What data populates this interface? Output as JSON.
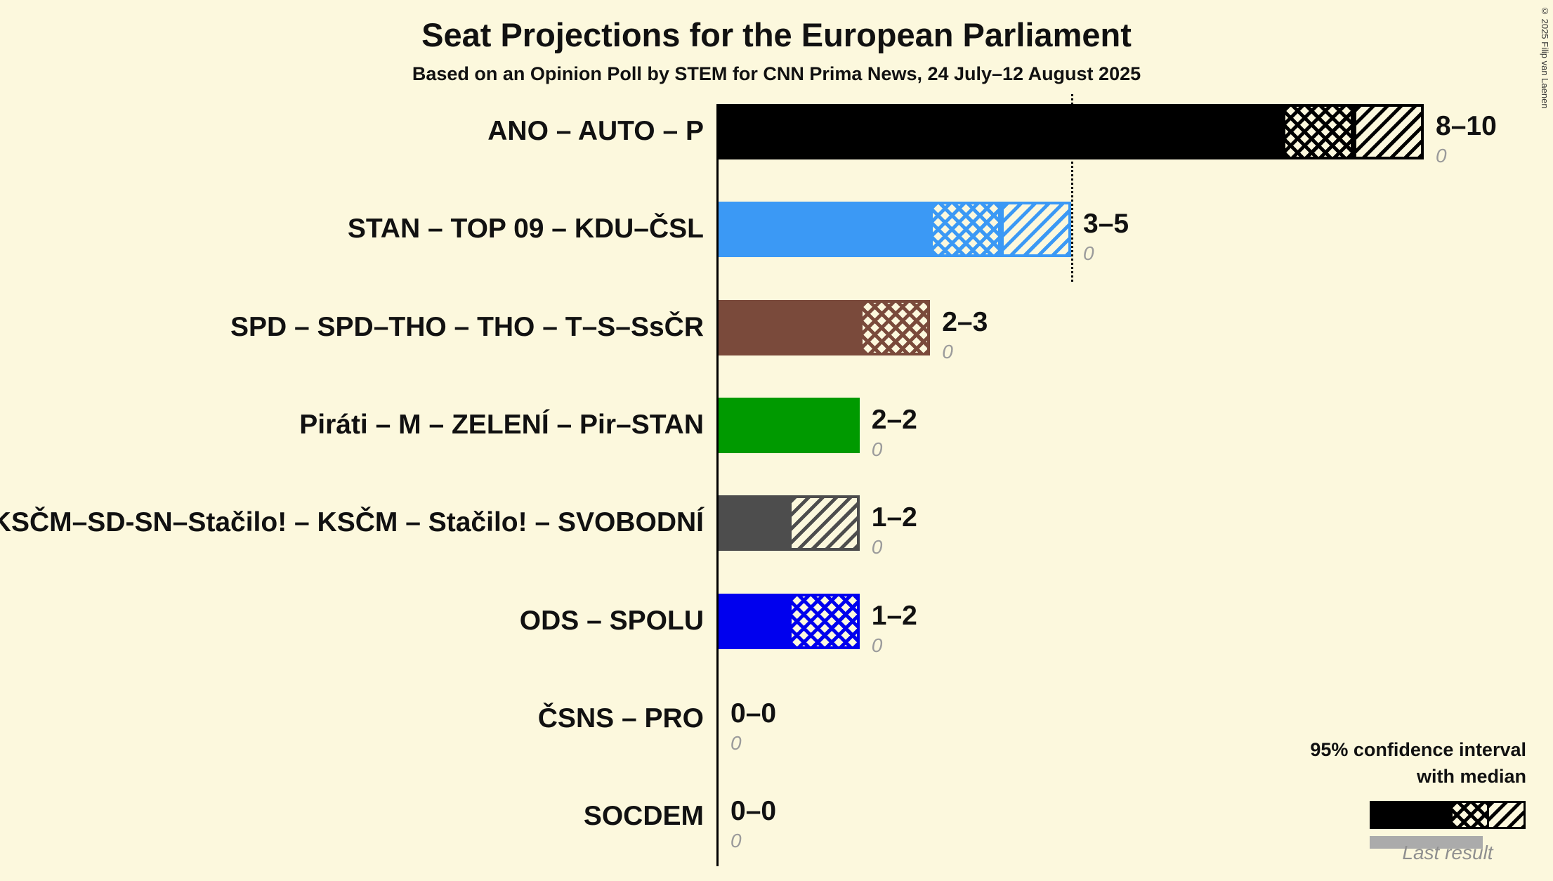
{
  "copyright": "© 2025 Filip van Laenen",
  "chart_data": {
    "type": "bar",
    "orientation": "horizontal",
    "title": "Seat Projections for the European Parliament",
    "subtitle": "Based on an Opinion Poll by STEM for CNN Prima News, 24 July–12 August 2025",
    "x_axis": {
      "min": 0,
      "max": 10,
      "gridlines": false
    },
    "reference_line_at_seats": 5,
    "background_color": "#FCF8DD",
    "parties": [
      {
        "label": "ANO – AUTO – P",
        "color": "#000000",
        "ci_low": 8,
        "ci_median": 9,
        "ci_high": 10,
        "ci_label": "8–10",
        "last_result": "0"
      },
      {
        "label": "STAN – TOP 09 – KDU–ČSL",
        "color": "#3B99F5",
        "ci_low": 3,
        "ci_median": 4,
        "ci_high": 5,
        "ci_label": "3–5",
        "last_result": "0"
      },
      {
        "label": "SPD – SPD–THO – THO – T–S–SsČR",
        "color": "#7A4A3B",
        "ci_low": 2,
        "ci_median": 3,
        "ci_high": 3,
        "ci_label": "2–3",
        "last_result": "0"
      },
      {
        "label": "Piráti – M – ZELENÍ – Pir–STAN",
        "color": "#009A00",
        "ci_low": 2,
        "ci_median": 2,
        "ci_high": 2,
        "ci_label": "2–2",
        "last_result": "0"
      },
      {
        "label": "KSČM–SD-SN–Stačilo! – KSČM – Stačilo! – SVOBODNÍ",
        "color": "#4D4D4D",
        "ci_low": 1,
        "ci_median": 1,
        "ci_high": 2,
        "ci_label": "1–2",
        "last_result": "0"
      },
      {
        "label": "ODS – SPOLU",
        "color": "#0000EE",
        "ci_low": 1,
        "ci_median": 2,
        "ci_high": 2,
        "ci_label": "1–2",
        "last_result": "0"
      },
      {
        "label": "ČSNS – PRO",
        "ci_low": 0,
        "ci_median": 0,
        "ci_high": 0,
        "ci_label": "0–0",
        "last_result": "0"
      },
      {
        "label": "SOCDEM",
        "ci_low": 0,
        "ci_median": 0,
        "ci_high": 0,
        "ci_label": "0–0",
        "last_result": "0"
      }
    ],
    "legend": {
      "ci_line1": "95% confidence interval",
      "ci_line2": "with median",
      "last_result_label": "Last result"
    }
  }
}
